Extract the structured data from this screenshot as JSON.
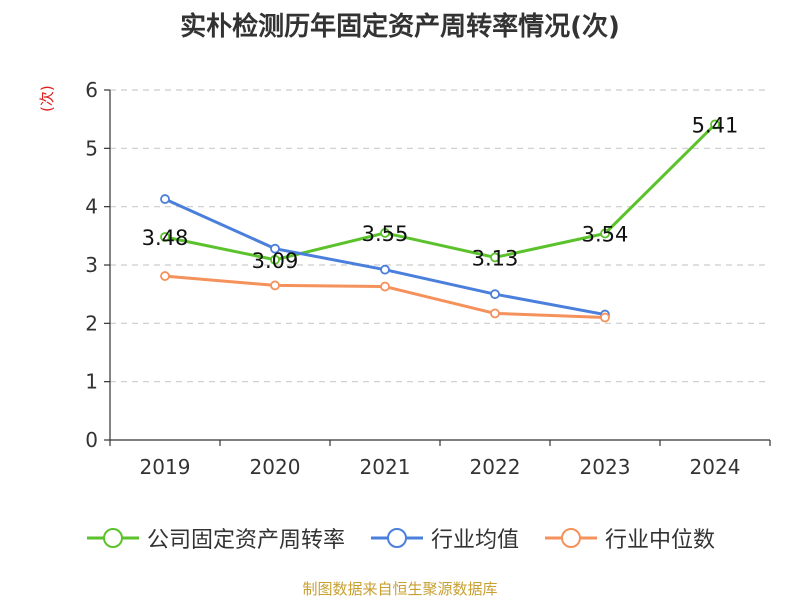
{
  "title": "实朴检测历年固定资产周转率情况(次)",
  "y_unit": "(次)",
  "source": "制图数据来自恒生聚源数据库",
  "colors": {
    "company": "#5bc22c",
    "industry_avg": "#4a7fdc",
    "industry_median": "#f5915a",
    "axis": "#333333",
    "grid": "#cccccc",
    "unit": "#e02020",
    "source": "#c8a032"
  },
  "legend": [
    {
      "label": "公司固定资产周转率",
      "color_key": "company"
    },
    {
      "label": "行业均值",
      "color_key": "industry_avg"
    },
    {
      "label": "行业中位数",
      "color_key": "industry_median"
    }
  ],
  "chart_data": {
    "type": "line",
    "title": "实朴检测历年固定资产周转率情况(次)",
    "ylabel": "(次)",
    "xlabel": "",
    "categories": [
      "2019",
      "2020",
      "2021",
      "2022",
      "2023",
      "2024"
    ],
    "ylim": [
      0,
      6
    ],
    "yticks": [
      0,
      1,
      2,
      3,
      4,
      5,
      6
    ],
    "grid": true,
    "legend_position": "bottom",
    "series": [
      {
        "name": "公司固定资产周转率",
        "color_key": "company",
        "values": [
          3.48,
          3.09,
          3.55,
          3.13,
          3.54,
          5.41
        ],
        "show_labels": true
      },
      {
        "name": "行业均值",
        "color_key": "industry_avg",
        "values": [
          4.13,
          3.28,
          2.92,
          2.5,
          2.15,
          null
        ],
        "show_labels": false
      },
      {
        "name": "行业中位数",
        "color_key": "industry_median",
        "values": [
          2.81,
          2.65,
          2.63,
          2.17,
          2.1,
          null
        ],
        "show_labels": false
      }
    ]
  }
}
